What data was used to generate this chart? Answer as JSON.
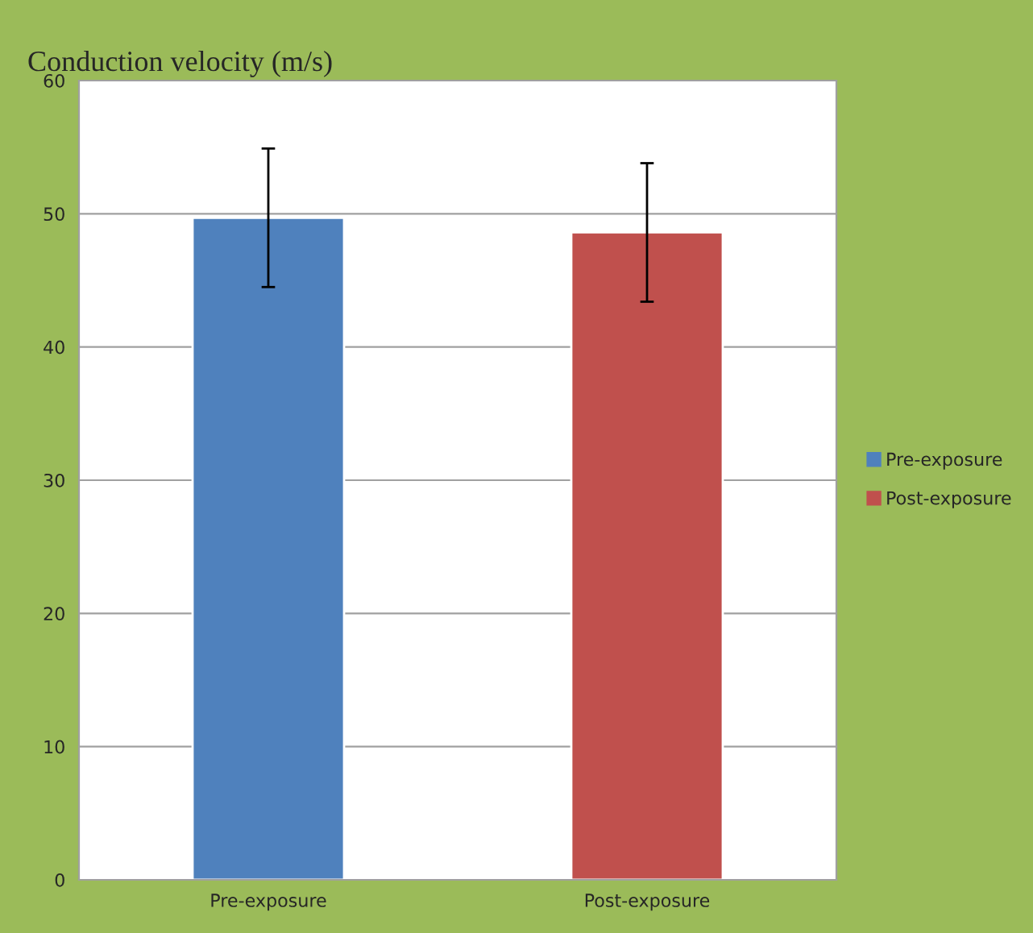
{
  "chart_data": {
    "type": "bar",
    "title": "Conduction velocity (m/s)",
    "categories": [
      "Pre-exposure",
      "Post-exposure"
    ],
    "series": [
      {
        "name": "Pre-exposure",
        "color": "#4f81bd",
        "values": [
          49.7,
          null
        ],
        "errors": [
          5.2,
          null
        ]
      },
      {
        "name": "Post-exposure",
        "color": "#c0504d",
        "values": [
          null,
          48.6
        ],
        "errors": [
          null,
          5.2
        ]
      }
    ],
    "ylim": [
      0,
      60
    ],
    "yticks": [
      0,
      10,
      20,
      30,
      40,
      50,
      60
    ],
    "grid": "y",
    "legend": "right"
  }
}
